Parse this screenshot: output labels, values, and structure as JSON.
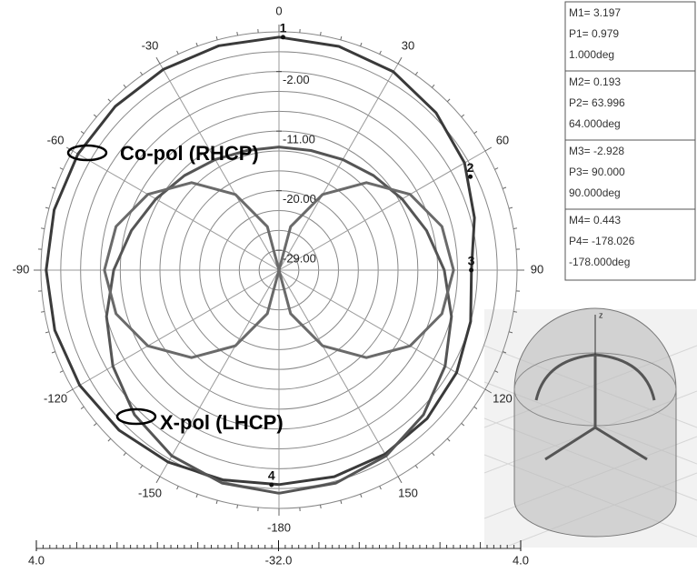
{
  "chart_data": {
    "type": "polar",
    "x": [
      -180,
      -165,
      -150,
      -135,
      -120,
      -105,
      -90,
      -75,
      -60,
      -45,
      -30,
      -15,
      0,
      15,
      30,
      45,
      60,
      75,
      90,
      105,
      120,
      135,
      150,
      165,
      180
    ],
    "series": [
      {
        "name": "Co-pol (RHCP)",
        "color": "#3a3a3a",
        "values": [
          0.4,
          0.8,
          1.5,
          2.2,
          2.8,
          3.1,
          3.2,
          3.2,
          3.1,
          3.0,
          3.0,
          3.1,
          3.2,
          3.0,
          2.6,
          1.6,
          0.4,
          -1.4,
          -2.9,
          -2.0,
          -1.0,
          -0.3,
          0.1,
          0.3,
          0.4
        ]
      },
      {
        "color": "#555555",
        "values": [
          1.7,
          1.3,
          0.4,
          -1.1,
          -3.0,
          -5.0,
          -7.0,
          -8.9,
          -10.5,
          -11.8,
          -12.7,
          -13.3,
          -13.4,
          -13.3,
          -12.7,
          -11.8,
          -10.5,
          -8.9,
          -7.0,
          -5.0,
          -3.0,
          -1.1,
          0.4,
          1.3,
          1.7
        ]
      },
      {
        "name": "X-pol (LHCP)",
        "color": "#6a6a6a",
        "values": [
          -32,
          -25.2,
          -18.8,
          -13.3,
          -9.1,
          -6.5,
          -5.6,
          -6.5,
          -9.1,
          -13.3,
          -18.8,
          -25.2,
          -32,
          -25.2,
          -18.8,
          -13.3,
          -9.1,
          -6.5,
          -5.6,
          -6.5,
          -9.1,
          -13.3,
          -18.8,
          -25.2,
          -32
        ]
      }
    ],
    "rlim": [
      -32,
      4
    ],
    "rgrid": [
      -29,
      -26,
      -23,
      -20,
      -17,
      -14,
      -11,
      -8,
      -5,
      -2,
      1,
      4
    ],
    "rticks": [
      {
        "value": -2,
        "label": "-2.00"
      },
      {
        "value": -11,
        "label": "-11.00"
      },
      {
        "value": -20,
        "label": "-20.00"
      },
      {
        "value": -29,
        "label": "-29.00"
      }
    ],
    "angle_ticks": [
      0,
      30,
      60,
      90,
      120,
      150,
      -180,
      -150,
      -120,
      -90,
      -60,
      -30
    ],
    "scale_bar_ticks": [
      {
        "value": 4,
        "label": "4.0"
      },
      {
        "value": -32,
        "label": "-32.0"
      },
      {
        "value": 4,
        "label": "4.0"
      }
    ],
    "markers": [
      {
        "label": "1",
        "angle": 1,
        "value": 3.197,
        "texts": [
          "M1= 3.197",
          "P1= 0.979",
          "1.000deg"
        ]
      },
      {
        "label": "2",
        "angle": 64,
        "value": 0.193,
        "texts": [
          "M2= 0.193",
          "P2= 63.996",
          "64.000deg"
        ]
      },
      {
        "label": "3",
        "angle": 90,
        "value": -2.928,
        "texts": [
          "M3= -2.928",
          "P3= 90.000",
          "90.000deg"
        ]
      },
      {
        "label": "4",
        "angle": -178,
        "value": 0.443,
        "texts": [
          "M4= 0.443",
          "P4= -178.026",
          "-178.000deg"
        ]
      }
    ],
    "annotations": [
      "Co-pol (RHCP)",
      "X-pol (LHCP)"
    ]
  }
}
